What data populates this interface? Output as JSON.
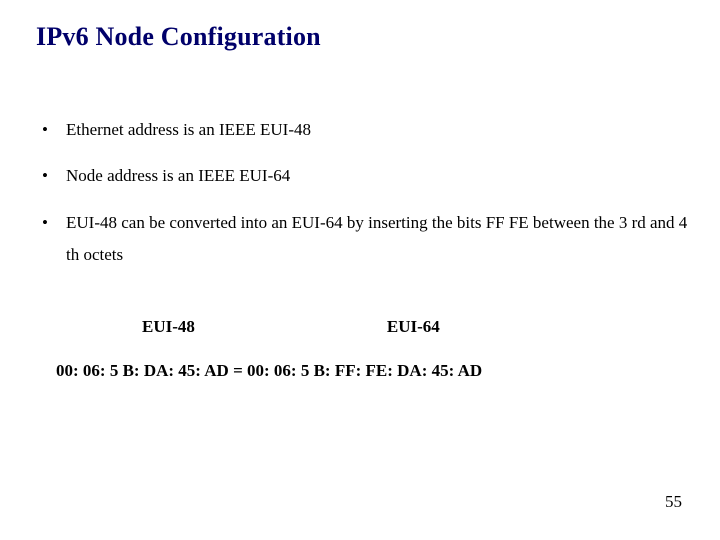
{
  "slide": {
    "title": "IPv6 Node Configuration",
    "title_color": "#00006a",
    "body_color": "#000000",
    "background_color": "#ffffff",
    "body_fontsize": 17,
    "title_fontsize": 26,
    "bullets": [
      "Ethernet address is an IEEE EUI-48",
      "Node address is an IEEE EUI-64",
      "EUI-48 can be converted into an EUI-64 by inserting the bits FF FE between the 3 rd and 4 th octets"
    ],
    "labels": {
      "eui48": "EUI-48",
      "eui64": "EUI-64"
    },
    "equation": "00: 06: 5 B: DA: 45: AD = 00: 06: 5 B: FF: FE: DA: 45: AD",
    "page_number": "55"
  }
}
